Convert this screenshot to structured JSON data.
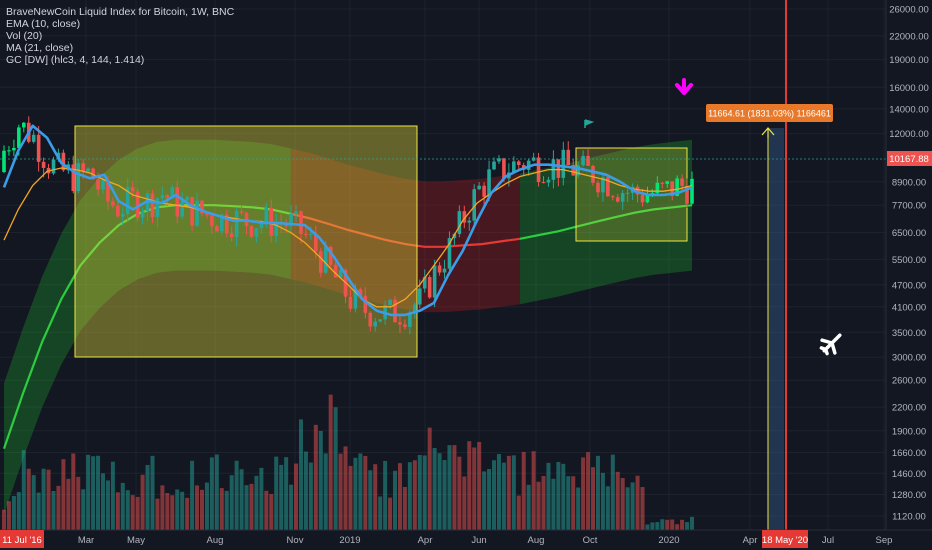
{
  "legend": {
    "symbol_line": "BraveNewCoin Liquid Index for Bitcoin, 1W, BNC",
    "ema": "EMA (10, close)",
    "vol": "Vol (20)",
    "ma": "MA (21, close)",
    "gc": "GC [DW] (hlc3, 4, 144, 1.414)"
  },
  "colors": {
    "background": "#131722",
    "up": "#26a69a",
    "up_bright": "#00e676",
    "down": "#ef5350",
    "ema": "#3d9ce8",
    "ma": "#f5a623",
    "box": "#f0e442",
    "projection_label": "#e8792b",
    "price_label": "#ef5350",
    "date_label": "#e53935",
    "arrow": "#ff00ff"
  },
  "price_axis": {
    "ticks": [
      "26000.00",
      "22000.00",
      "19000.00",
      "16000.00",
      "14000.00",
      "12000.00",
      "10167.88",
      "8900.00",
      "7700.00",
      "6500.00",
      "5500.00",
      "4700.00",
      "4100.00",
      "3500.00",
      "3000.00",
      "2600.00",
      "2200.00",
      "1900.00",
      "1660.00",
      "1460.00",
      "1280.00",
      "1120.00"
    ],
    "current_price": "10167.88",
    "scale": "log"
  },
  "time_axis": {
    "start_label": "11 Jul '16",
    "labels": [
      "Mar",
      "May",
      "Aug",
      "Nov",
      "2019",
      "Apr",
      "Jun",
      "Aug",
      "Oct",
      "2020",
      "Apr",
      "Jul",
      "Sep"
    ],
    "end_marker": "18 May '20"
  },
  "annotations": {
    "projection": "11664.61 (1831.03%) 1166461"
  },
  "chart_data": {
    "type": "candlestick",
    "title": "BraveNewCoin Liquid Index for Bitcoin, 1W, BNC",
    "price_scale": "log",
    "ylim": [
      1000,
      29000
    ],
    "series": [
      {
        "name": "EMA (10, close)",
        "values": [
          8600,
          10800,
          12600,
          11700,
          10000,
          9400,
          9100,
          9300,
          7900,
          7500,
          7900,
          7800,
          8200,
          7700,
          7400,
          7200,
          7000,
          7000,
          6900,
          6900,
          6850,
          6800,
          6300,
          5600,
          4900,
          4300,
          4000,
          3900,
          3900,
          4000,
          4200,
          5000,
          5800,
          7000,
          8300,
          9200,
          9600,
          9900,
          9900,
          9800,
          9700,
          9500,
          9300,
          8900,
          8400,
          8200,
          8200,
          8300,
          8600
        ]
      },
      {
        "name": "MA (21, close)",
        "values": [
          6200,
          7500,
          8700,
          9500,
          9700,
          9600,
          9400,
          9000,
          8700,
          8200,
          8000,
          7800,
          7700,
          7600,
          7400,
          7200,
          7100,
          7000,
          6950,
          6800,
          6500,
          6100,
          5600,
          5100,
          4700,
          4300,
          4100,
          4100,
          4300,
          4700,
          5300,
          6000,
          7000,
          7800,
          8300,
          8800,
          9200,
          9400,
          9600,
          9600,
          9400,
          9200,
          9000,
          8700,
          8500,
          8400,
          8400,
          8500,
          8700
        ]
      },
      {
        "name": "GC [DW] (hlc3, 4, 144, 1.414) basis",
        "values": [
          1700,
          2400,
          3300,
          4300,
          5300,
          6100,
          6800,
          7300,
          7600,
          7700,
          7700,
          7700,
          7650,
          7600,
          7500,
          7300,
          7100,
          6850,
          6600,
          6400,
          6200,
          6050,
          5950,
          5950,
          6000,
          6050,
          6150,
          6250,
          6400,
          6550,
          6750,
          6950,
          7150,
          7350,
          7500,
          7600,
          7700
        ]
      }
    ]
  }
}
